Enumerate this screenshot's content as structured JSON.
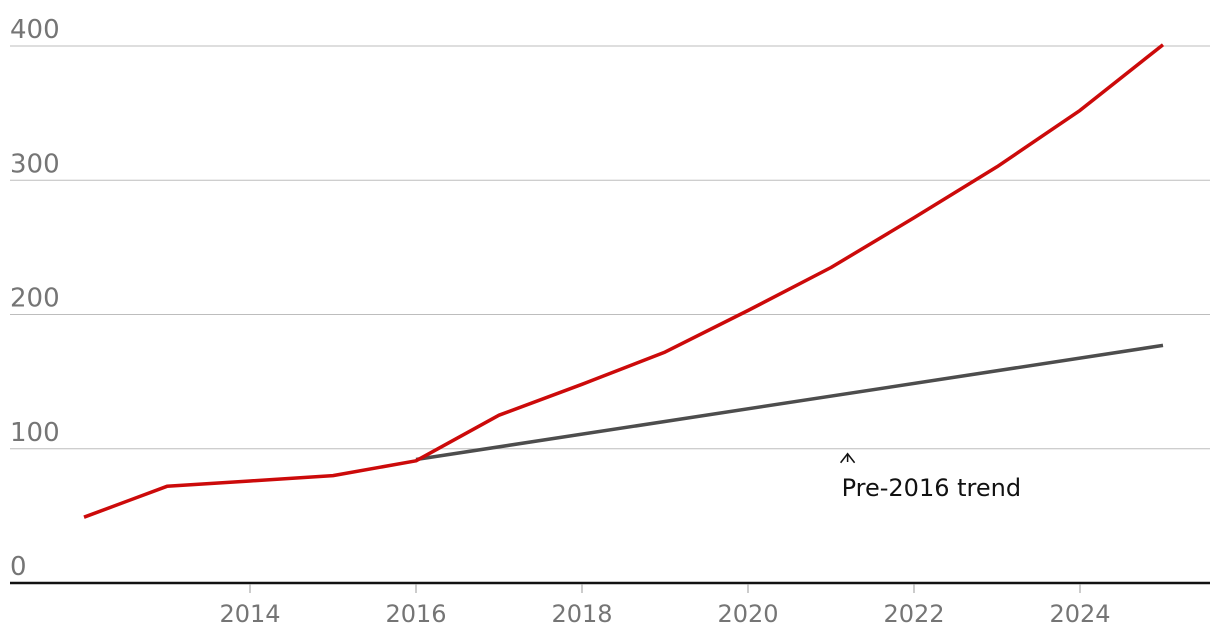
{
  "chart_data": {
    "type": "line",
    "title": "",
    "xlabel": "",
    "ylabel": "",
    "xlim": [
      2012,
      2025.5
    ],
    "ylim": [
      0,
      400
    ],
    "yticks": [
      0,
      100,
      200,
      300,
      400
    ],
    "xticks": [
      2014,
      2016,
      2018,
      2020,
      2022,
      2024
    ],
    "grid": true,
    "legend": "none",
    "series": [
      {
        "color": "#cc0a0a",
        "x": [
          2012,
          2013,
          2014,
          2015,
          2016,
          2017,
          2018,
          2019,
          2020,
          2021,
          2022,
          2023,
          2024,
          2025
        ],
        "y": [
          49,
          72,
          76,
          80,
          91,
          125,
          148,
          172,
          203,
          235,
          272,
          310,
          352,
          401
        ]
      },
      {
        "color": "#4d4d4d",
        "x": [
          2016,
          2025
        ],
        "y": [
          92,
          177
        ]
      }
    ],
    "annotations": [
      {
        "text": "Pre-2016 trend",
        "x": 2021.2,
        "y": 100
      }
    ]
  }
}
